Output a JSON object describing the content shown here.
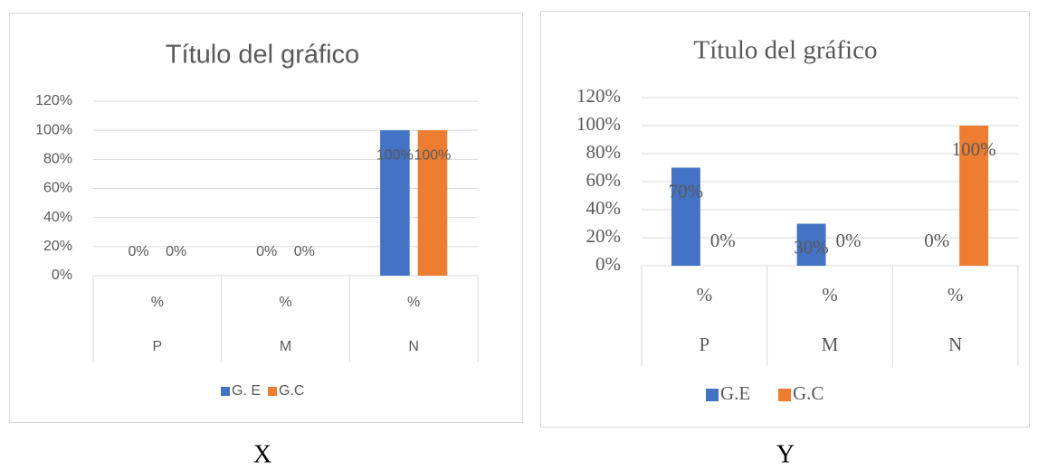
{
  "chart_data": [
    {
      "type": "bar",
      "title": "Título del gráfico",
      "caption": "X",
      "categories": [
        "P",
        "M",
        "N"
      ],
      "category_sublabels": [
        "%",
        "%",
        "%"
      ],
      "series": [
        {
          "name": "G. E",
          "color": "#4472c4",
          "values": [
            0,
            0,
            100
          ],
          "value_labels": [
            "0%",
            "0%",
            "100%"
          ]
        },
        {
          "name": "G.C",
          "color": "#ed7d31",
          "values": [
            0,
            0,
            100
          ],
          "value_labels": [
            "0%",
            "0%",
            "100%"
          ]
        }
      ],
      "ylim": [
        0,
        120
      ],
      "yticks": [
        {
          "value": 0,
          "label": "0%"
        },
        {
          "value": 20,
          "label": "20%"
        },
        {
          "value": 40,
          "label": "40%"
        },
        {
          "value": 60,
          "label": "60%"
        },
        {
          "value": 80,
          "label": "80%"
        },
        {
          "value": 100,
          "label": "100%"
        },
        {
          "value": 120,
          "label": "120%"
        }
      ],
      "grid": true,
      "legend": "bottom"
    },
    {
      "type": "bar",
      "title": "Título del gráfico",
      "caption": "Y",
      "categories": [
        "P",
        "M",
        "N"
      ],
      "category_sublabels": [
        "%",
        "%",
        "%"
      ],
      "series": [
        {
          "name": "G.E",
          "color": "#4472c4",
          "values": [
            70,
            30,
            0
          ],
          "value_labels": [
            "70%",
            "30%",
            "0%"
          ]
        },
        {
          "name": "G.C",
          "color": "#ed7d31",
          "values": [
            0,
            0,
            100
          ],
          "value_labels": [
            "0%",
            "0%",
            "100%"
          ]
        }
      ],
      "ylim": [
        0,
        120
      ],
      "yticks": [
        {
          "value": 0,
          "label": "0%"
        },
        {
          "value": 20,
          "label": "20%"
        },
        {
          "value": 40,
          "label": "40%"
        },
        {
          "value": 60,
          "label": "60%"
        },
        {
          "value": 80,
          "label": "80%"
        },
        {
          "value": 100,
          "label": "100%"
        },
        {
          "value": 120,
          "label": "120%"
        }
      ],
      "grid": true,
      "legend": "bottom"
    }
  ]
}
